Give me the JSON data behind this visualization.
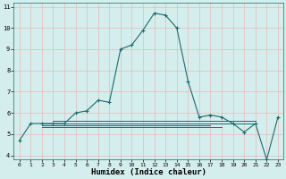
{
  "title": "",
  "xlabel": "Humidex (Indice chaleur)",
  "ylabel": "",
  "bg_color": "#d4eeed",
  "grid_color": "#e8b8b8",
  "line_color": "#1a6b6b",
  "x_main": [
    0,
    1,
    2,
    3,
    4,
    5,
    6,
    7,
    8,
    9,
    10,
    11,
    12,
    13,
    14,
    15,
    16,
    17,
    18,
    19,
    20,
    21,
    22,
    23
  ],
  "y_main": [
    4.7,
    5.5,
    5.5,
    5.5,
    5.5,
    6.0,
    6.1,
    6.6,
    6.5,
    9.0,
    9.2,
    9.9,
    10.7,
    10.6,
    10.0,
    7.5,
    5.8,
    5.9,
    5.8,
    5.5,
    5.1,
    5.5,
    3.8,
    5.8
  ],
  "flat_lines": [
    {
      "x": [
        2,
        21
      ],
      "y": 5.52
    },
    {
      "x": [
        2,
        17
      ],
      "y": 5.42
    },
    {
      "x": [
        2,
        18
      ],
      "y": 5.35
    },
    {
      "x": [
        3,
        21
      ],
      "y": 5.62
    }
  ],
  "xlim": [
    -0.5,
    23.5
  ],
  "ylim": [
    3.8,
    11.2
  ],
  "yticks": [
    4,
    5,
    6,
    7,
    8,
    9,
    10,
    11
  ],
  "xticks": [
    0,
    1,
    2,
    3,
    4,
    5,
    6,
    7,
    8,
    9,
    10,
    11,
    12,
    13,
    14,
    15,
    16,
    17,
    18,
    19,
    20,
    21,
    22,
    23
  ]
}
